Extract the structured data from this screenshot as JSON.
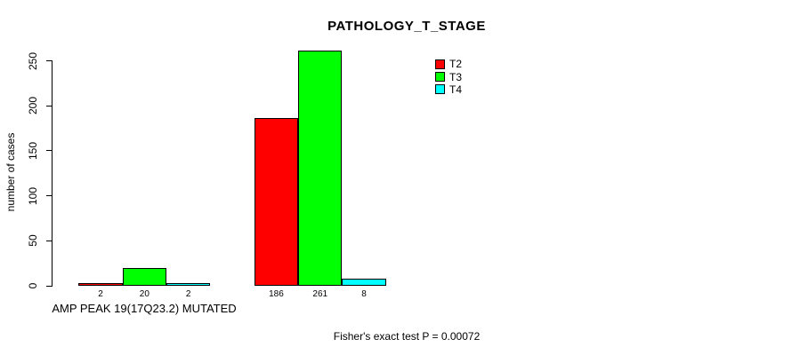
{
  "chart_data": {
    "type": "bar",
    "title": "PATHOLOGY_T_STAGE",
    "ylabel": "number of cases",
    "xlabel": "",
    "footer": "Fisher's exact test P = 0.00072",
    "categories": [
      "AMP PEAK 19(17Q23.2) MUTATED",
      ""
    ],
    "series": [
      {
        "name": "T2",
        "color": "#ff0000",
        "values": [
          2,
          186
        ]
      },
      {
        "name": "T3",
        "color": "#00ff00",
        "values": [
          20,
          261
        ]
      },
      {
        "name": "T4",
        "color": "#00ffff",
        "values": [
          2,
          8
        ]
      }
    ],
    "bar_value_labels": [
      [
        "2",
        "20",
        "2"
      ],
      [
        "186",
        "261",
        "8"
      ]
    ],
    "yticks": [
      0,
      50,
      100,
      150,
      200,
      250
    ],
    "ylim": [
      0,
      265
    ],
    "grid": false,
    "legend_position": "top-right",
    "legend_entries": [
      "T2",
      "T3",
      "T4"
    ]
  },
  "colors": {
    "background": "#ffffff",
    "axis": "#000000",
    "text": "#000000",
    "t2": "#ff0000",
    "t3": "#00ff00",
    "t4": "#00ffff"
  }
}
